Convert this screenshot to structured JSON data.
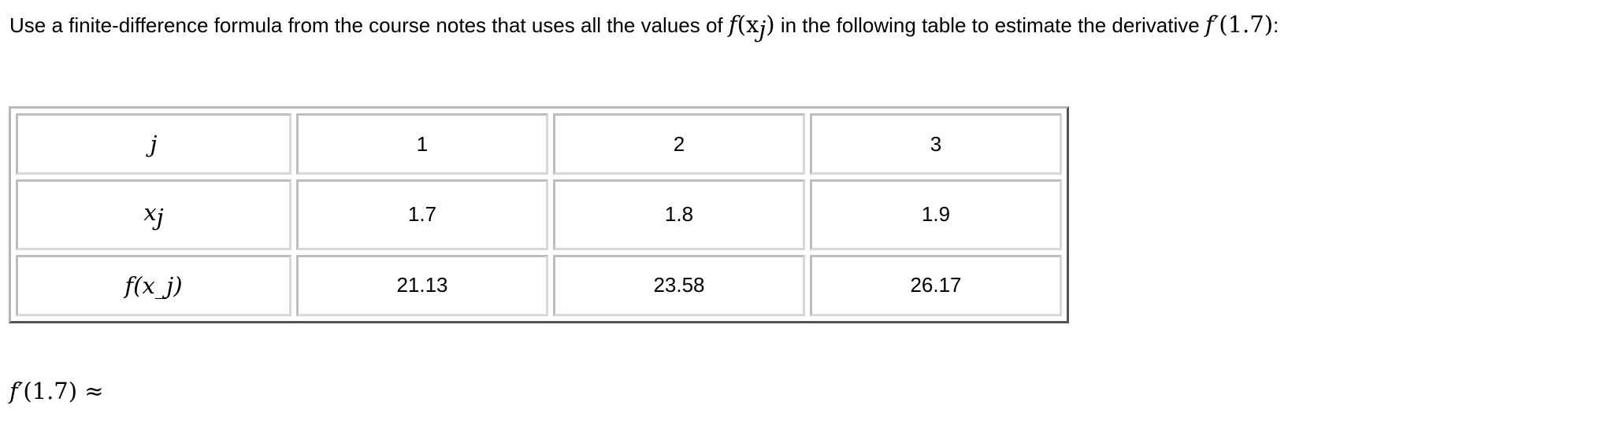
{
  "prompt": {
    "text_before": "Use a finite-difference formula from the course notes that uses all the values of ",
    "math_f": "f",
    "math_x": "(x",
    "math_sub": "j",
    "math_close": ")",
    "text_after": " in the following table to estimate the derivative ",
    "deriv_f": "f′",
    "deriv_arg": "(1.7)",
    "colon": ":"
  },
  "table": {
    "rows": [
      {
        "header": "j",
        "values": [
          "1",
          "2",
          "3"
        ]
      },
      {
        "header": "x_j",
        "values": [
          "1.7",
          "1.8",
          "1.9"
        ]
      },
      {
        "header": "f(x_j)",
        "values": [
          "21.13",
          "23.58",
          "26.17"
        ]
      }
    ]
  },
  "answer": {
    "f": "f′",
    "arg": "(1.7)",
    "approx": " ≈"
  }
}
